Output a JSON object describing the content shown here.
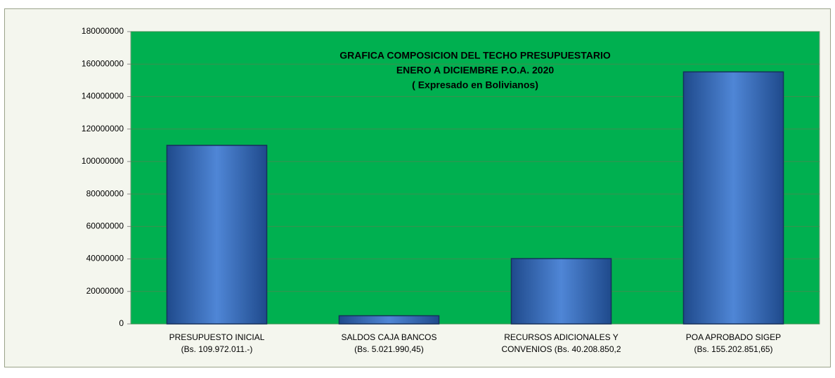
{
  "chart_data": {
    "type": "bar",
    "title": [
      "GRAFICA  COMPOSICION DEL TECHO PRESUPUESTARIO",
      "ENERO A DICIEMBRE P.O.A. 2020",
      "( Expresado en Bolivianos)"
    ],
    "categories": [
      [
        "PRESUPUESTO INICIAL",
        "(Bs. 109.972.011.-)"
      ],
      [
        "SALDOS CAJA BANCOS",
        "(Bs. 5.021.990,45)"
      ],
      [
        "RECURSOS ADICIONALES Y",
        "CONVENIOS   (Bs. 40.208.850,2"
      ],
      [
        "POA  APROBADO SIGEP",
        "(Bs. 155.202.851,65)"
      ]
    ],
    "values": [
      109972011,
      5021990.45,
      40208850.2,
      155202851.65
    ],
    "color": "#2e63b8",
    "plot_background": "#00b050",
    "ylim": [
      0,
      180000000
    ],
    "yticks": [
      0,
      20000000,
      40000000,
      60000000,
      80000000,
      100000000,
      120000000,
      140000000,
      160000000,
      180000000
    ],
    "grid": true
  }
}
